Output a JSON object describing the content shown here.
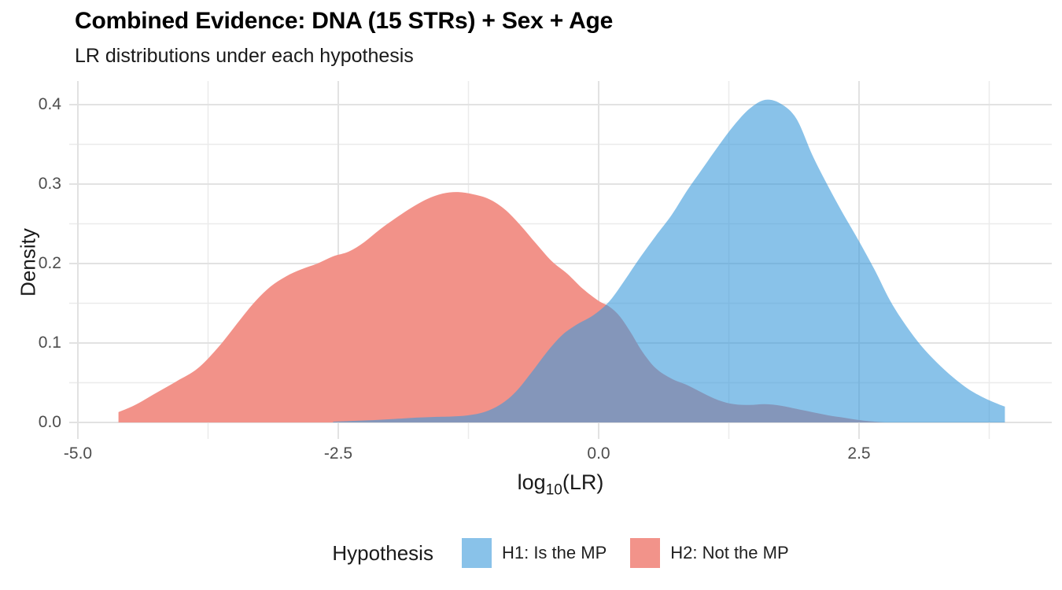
{
  "header": {
    "title": "Combined Evidence: DNA (15 STRs) + Sex + Age",
    "subtitle": "LR distributions under each hypothesis"
  },
  "axes": {
    "y_label": "Density",
    "x_label_parts": {
      "prefix": "log",
      "sub": "10",
      "rest": "(LR)"
    }
  },
  "legend": {
    "title": "Hypothesis"
  },
  "colors": {
    "background": "#ffffff",
    "grid_major": "#e2e2e2",
    "grid_minor": "#ebebeb",
    "h1_fill_composite": "#89c2e9",
    "h2_fill_composite": "#f2938a",
    "overlap": "#8496ba",
    "tick_text": "#4d4d4d",
    "title_text": "#000000"
  },
  "chart_data": {
    "type": "area",
    "title": "Combined Evidence: DNA (15 STRs) + Sex + Age",
    "subtitle": "LR distributions under each hypothesis",
    "xlabel": "log10(LR)",
    "ylabel": "Density",
    "xlim": [
      -5.08,
      4.32
    ],
    "ylim": [
      0,
      0.43
    ],
    "grid": true,
    "legend_position": "bottom",
    "legend_title": "Hypothesis",
    "x_ticks": [
      {
        "value": -5.0,
        "label": "-5.0"
      },
      {
        "value": -2.5,
        "label": "-2.5"
      },
      {
        "value": 0.0,
        "label": "0.0"
      },
      {
        "value": 2.5,
        "label": "2.5"
      }
    ],
    "y_ticks": [
      {
        "value": 0.0,
        "label": "0.0"
      },
      {
        "value": 0.1,
        "label": "0.1"
      },
      {
        "value": 0.2,
        "label": "0.2"
      },
      {
        "value": 0.3,
        "label": "0.3"
      },
      {
        "value": 0.4,
        "label": "0.4"
      }
    ],
    "x_minor": [
      -3.75,
      -1.25,
      1.25,
      3.75
    ],
    "y_minor": [
      0.05,
      0.15,
      0.25,
      0.35
    ],
    "series": [
      {
        "name": "H2: Not the MP",
        "role": "h2",
        "fill": "#f29289",
        "peak": {
          "x": -1.35,
          "density": 0.29
        },
        "points": [
          [
            -4.61,
            0.013
          ],
          [
            -4.45,
            0.022
          ],
          [
            -4.25,
            0.037
          ],
          [
            -4.05,
            0.052
          ],
          [
            -3.85,
            0.068
          ],
          [
            -3.65,
            0.095
          ],
          [
            -3.45,
            0.128
          ],
          [
            -3.3,
            0.152
          ],
          [
            -3.15,
            0.171
          ],
          [
            -3.0,
            0.184
          ],
          [
            -2.85,
            0.193
          ],
          [
            -2.7,
            0.2
          ],
          [
            -2.55,
            0.209
          ],
          [
            -2.4,
            0.215
          ],
          [
            -2.25,
            0.227
          ],
          [
            -2.1,
            0.243
          ],
          [
            -1.95,
            0.257
          ],
          [
            -1.8,
            0.27
          ],
          [
            -1.65,
            0.281
          ],
          [
            -1.5,
            0.288
          ],
          [
            -1.35,
            0.29
          ],
          [
            -1.2,
            0.287
          ],
          [
            -1.05,
            0.281
          ],
          [
            -0.9,
            0.268
          ],
          [
            -0.75,
            0.248
          ],
          [
            -0.6,
            0.225
          ],
          [
            -0.45,
            0.203
          ],
          [
            -0.3,
            0.187
          ],
          [
            -0.15,
            0.168
          ],
          [
            0.0,
            0.153
          ],
          [
            0.1,
            0.146
          ],
          [
            0.2,
            0.134
          ],
          [
            0.3,
            0.115
          ],
          [
            0.42,
            0.089
          ],
          [
            0.55,
            0.068
          ],
          [
            0.7,
            0.055
          ],
          [
            0.85,
            0.047
          ],
          [
            1.0,
            0.037
          ],
          [
            1.15,
            0.028
          ],
          [
            1.3,
            0.023
          ],
          [
            1.45,
            0.022
          ],
          [
            1.6,
            0.023
          ],
          [
            1.75,
            0.021
          ],
          [
            1.9,
            0.017
          ],
          [
            2.05,
            0.013
          ],
          [
            2.2,
            0.009
          ],
          [
            2.35,
            0.006
          ],
          [
            2.5,
            0.003
          ],
          [
            2.65,
            0.001
          ],
          [
            2.75,
            0.0
          ]
        ]
      },
      {
        "name": "H1: Is the MP",
        "role": "h1",
        "fill": "rgba(58,153,218,0.6)",
        "peak": {
          "x": 1.6,
          "density": 0.407
        },
        "points": [
          [
            -2.55,
            0.001
          ],
          [
            -2.35,
            0.002
          ],
          [
            -2.15,
            0.003
          ],
          [
            -1.95,
            0.0045
          ],
          [
            -1.75,
            0.006
          ],
          [
            -1.55,
            0.007
          ],
          [
            -1.4,
            0.0075
          ],
          [
            -1.25,
            0.009
          ],
          [
            -1.1,
            0.013
          ],
          [
            -0.95,
            0.022
          ],
          [
            -0.8,
            0.038
          ],
          [
            -0.65,
            0.062
          ],
          [
            -0.5,
            0.088
          ],
          [
            -0.35,
            0.11
          ],
          [
            -0.2,
            0.124
          ],
          [
            -0.05,
            0.135
          ],
          [
            0.1,
            0.152
          ],
          [
            0.25,
            0.179
          ],
          [
            0.4,
            0.208
          ],
          [
            0.55,
            0.235
          ],
          [
            0.7,
            0.261
          ],
          [
            0.85,
            0.292
          ],
          [
            1.0,
            0.32
          ],
          [
            1.15,
            0.348
          ],
          [
            1.3,
            0.374
          ],
          [
            1.45,
            0.395
          ],
          [
            1.6,
            0.406
          ],
          [
            1.75,
            0.401
          ],
          [
            1.9,
            0.382
          ],
          [
            2.05,
            0.337
          ],
          [
            2.2,
            0.298
          ],
          [
            2.35,
            0.262
          ],
          [
            2.5,
            0.228
          ],
          [
            2.65,
            0.192
          ],
          [
            2.8,
            0.153
          ],
          [
            2.95,
            0.122
          ],
          [
            3.1,
            0.096
          ],
          [
            3.25,
            0.075
          ],
          [
            3.4,
            0.057
          ],
          [
            3.55,
            0.042
          ],
          [
            3.7,
            0.031
          ],
          [
            3.82,
            0.024
          ],
          [
            3.9,
            0.02
          ]
        ]
      }
    ],
    "legend_items": [
      {
        "label": "H1: Is the MP",
        "swatch": "#89c2e9"
      },
      {
        "label": "H2: Not the MP",
        "swatch": "#f2938a"
      }
    ]
  }
}
